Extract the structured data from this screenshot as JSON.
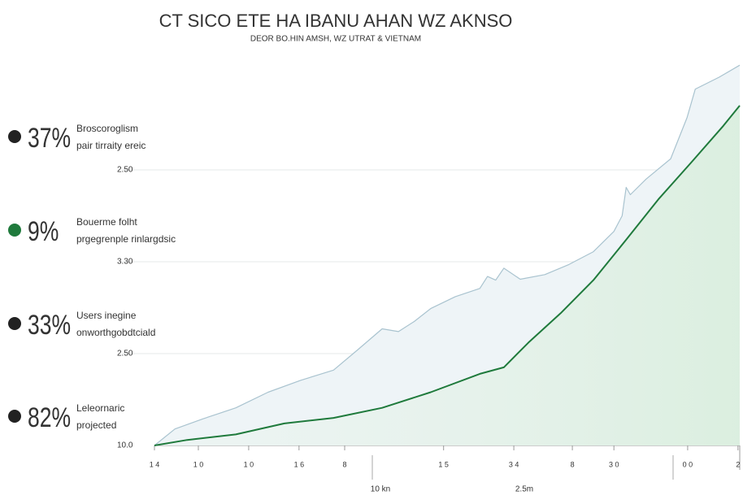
{
  "chart_data": {
    "type": "line",
    "title": "CT SICO ETE HA IBANU AHAN WZ AKNSO",
    "subtitle": "DEOR BO.HIN AMSH, WZ UTRAT & VIETNAM",
    "xlim": [
      0,
      100
    ],
    "ylim": [
      0,
      4.2
    ],
    "xticks": [
      {
        "value": 0,
        "label": "1 4"
      },
      {
        "value": 7.5,
        "label": "1 0"
      },
      {
        "value": 16.1,
        "label": "1 0"
      },
      {
        "value": 24.7,
        "label": "1 6"
      },
      {
        "value": 32.5,
        "label": "8"
      },
      {
        "value": 49.4,
        "label": "1 5"
      },
      {
        "value": 61.4,
        "label": "3 4"
      },
      {
        "value": 71.4,
        "label": "8"
      },
      {
        "value": 78.5,
        "label": "3 0"
      },
      {
        "value": 91.1,
        "label": "0 0"
      },
      {
        "value": 99.7,
        "label": "2"
      }
    ],
    "yticks": [
      {
        "value": 0,
        "label": "10.0"
      },
      {
        "value": 1,
        "label": "2.50"
      },
      {
        "value": 2,
        "label": "3.30"
      },
      {
        "value": 3,
        "label": "2.50"
      }
    ],
    "grid": true,
    "x_annotations": [
      "10 kn",
      "2.5m"
    ],
    "series": [
      {
        "color": "#a9c3cf",
        "x": [
          0,
          3.5,
          8.3,
          13.9,
          19.4,
          25,
          30.6,
          34.7,
          38.9,
          41.7,
          44.4,
          47.2,
          51.4,
          55.6,
          56.9,
          58.3,
          59.7,
          62.5,
          66.7,
          70.8,
          75,
          78.5,
          79.9,
          80.6,
          81.3,
          84,
          88.2,
          91,
          92.4,
          96.5,
          100
        ],
        "values": [
          0,
          0.18,
          0.29,
          0.41,
          0.58,
          0.71,
          0.82,
          1.04,
          1.27,
          1.24,
          1.35,
          1.49,
          1.62,
          1.71,
          1.84,
          1.8,
          1.93,
          1.81,
          1.86,
          1.97,
          2.11,
          2.33,
          2.5,
          2.81,
          2.73,
          2.9,
          3.12,
          3.57,
          3.88,
          4.01,
          4.14
        ]
      },
      {
        "color": "#1f7a3c",
        "x": [
          0,
          5.6,
          13.9,
          22.2,
          30.6,
          38.9,
          47.2,
          55.6,
          59.7,
          63.9,
          69.4,
          75,
          80.6,
          86.1,
          91.7,
          97.2,
          100
        ],
        "values": [
          0,
          0.06,
          0.12,
          0.24,
          0.3,
          0.41,
          0.58,
          0.78,
          0.85,
          1.12,
          1.44,
          1.8,
          2.24,
          2.68,
          3.08,
          3.48,
          3.7
        ]
      }
    ]
  },
  "callouts": [
    {
      "percent": "37%",
      "line1": "Broscoroglism",
      "line2": "pair tirraity ereic"
    },
    {
      "percent": "9%",
      "line1": "Bouerme folht",
      "line2": "prgegrenple rinlargdsic"
    },
    {
      "percent": "33%",
      "line1": "Users inegine",
      "line2": "onworthgobdtciald"
    },
    {
      "percent": "82%",
      "line1": "Leleornaric",
      "line2": "projected"
    }
  ]
}
